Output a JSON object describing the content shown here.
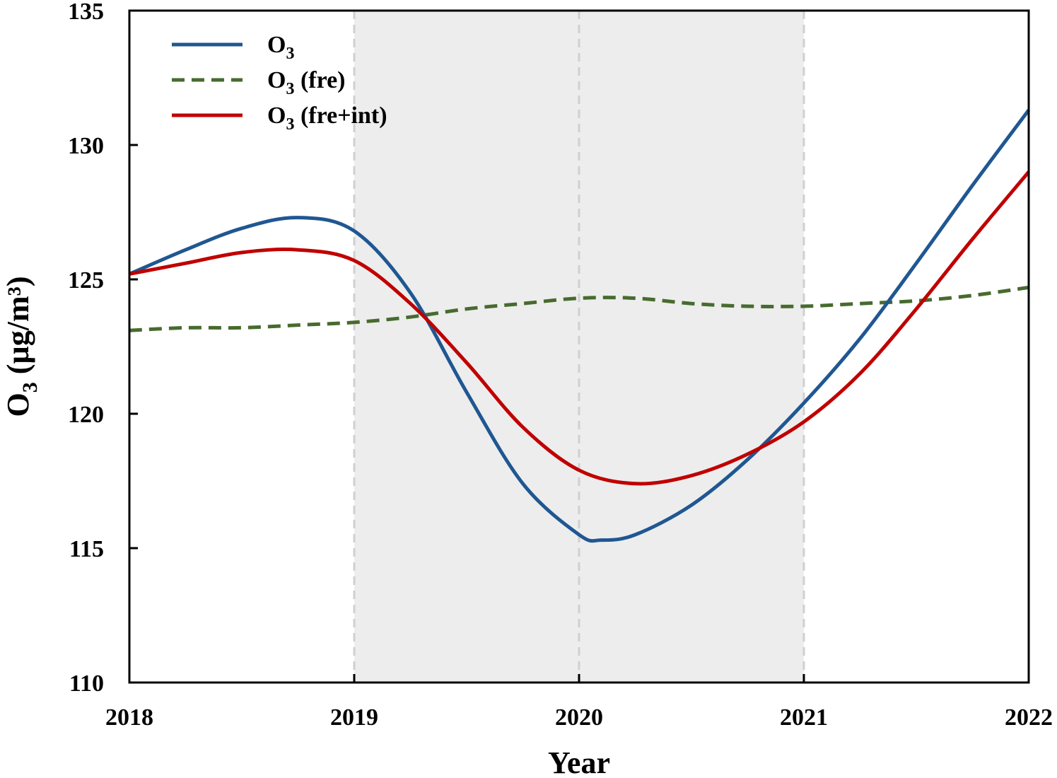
{
  "chart_data": {
    "type": "line",
    "xlabel": "Year",
    "ylabel_main": "O",
    "ylabel_sub": "3",
    "ylabel_unit": " (µg/m³)",
    "xlim": [
      2018,
      2022
    ],
    "ylim": [
      110,
      135
    ],
    "x_ticks": [
      2018,
      2019,
      2020,
      2021,
      2022
    ],
    "y_ticks": [
      110,
      115,
      120,
      125,
      130,
      135
    ],
    "shaded_region": [
      2019,
      2021
    ],
    "vertical_gridlines": [
      2019,
      2020,
      2021
    ],
    "legend_position": "top-left",
    "colors": {
      "o3": "#1f5792",
      "o3_fre": "#476b2e",
      "o3_fre_int": "#c00000",
      "shade": "#ededed",
      "grid": "#d0d0d0"
    },
    "series": [
      {
        "key": "o3",
        "name_main": "O",
        "name_sub": "3",
        "name_suffix": "",
        "style": "solid",
        "x": [
          2018.0,
          2018.25,
          2018.5,
          2018.75,
          2019.0,
          2019.25,
          2019.5,
          2019.75,
          2020.0,
          2020.1,
          2020.25,
          2020.5,
          2020.75,
          2021.0,
          2021.25,
          2021.5,
          2021.75,
          2022.0
        ],
        "y": [
          125.2,
          126.1,
          126.9,
          127.3,
          126.8,
          124.5,
          120.8,
          117.4,
          115.5,
          115.3,
          115.5,
          116.6,
          118.3,
          120.4,
          122.8,
          125.6,
          128.5,
          131.3
        ]
      },
      {
        "key": "o3_fre",
        "name_main": "O",
        "name_sub": "3",
        "name_suffix": " (fre)",
        "style": "dashed",
        "x": [
          2018.0,
          2018.25,
          2018.5,
          2018.75,
          2019.0,
          2019.25,
          2019.5,
          2019.75,
          2020.0,
          2020.25,
          2020.5,
          2020.75,
          2021.0,
          2021.25,
          2021.5,
          2021.75,
          2022.0
        ],
        "y": [
          123.1,
          123.2,
          123.2,
          123.3,
          123.4,
          123.6,
          123.9,
          124.1,
          124.3,
          124.3,
          124.1,
          124.0,
          124.0,
          124.1,
          124.2,
          124.4,
          124.7
        ]
      },
      {
        "key": "o3_fre_int",
        "name_main": "O",
        "name_sub": "3",
        "name_suffix": " (fre+int)",
        "style": "solid",
        "x": [
          2018.0,
          2018.25,
          2018.5,
          2018.75,
          2019.0,
          2019.25,
          2019.5,
          2019.75,
          2020.0,
          2020.25,
          2020.5,
          2020.75,
          2021.0,
          2021.25,
          2021.5,
          2021.75,
          2022.0
        ],
        "y": [
          125.2,
          125.6,
          126.0,
          126.1,
          125.7,
          124.1,
          121.9,
          119.5,
          117.9,
          117.4,
          117.7,
          118.5,
          119.7,
          121.5,
          123.9,
          126.5,
          129.0
        ]
      }
    ]
  }
}
